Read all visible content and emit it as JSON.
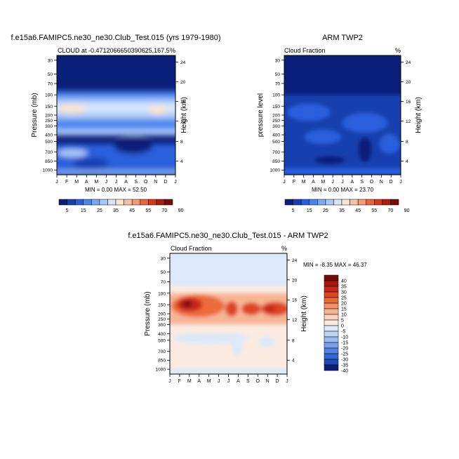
{
  "chart_data": [
    {
      "type": "heatmap",
      "title": "f.e15a6.FAMIPC5.ne30_ne30.Club_Test.015 (yrs 1979-1980)",
      "subtitle_left": "CLOUD at -0.4712066650390625,167.5",
      "subtitle_right": "%",
      "ylabel": "Pressure (mb)",
      "ylabel_right": "Height (km)",
      "x_ticks": [
        "J",
        "F",
        "M",
        "A",
        "M",
        "J",
        "J",
        "A",
        "S",
        "O",
        "N",
        "D",
        "J"
      ],
      "y_ticks": [
        "30",
        "50",
        "70",
        "100",
        "150",
        "200",
        "250",
        "300",
        "400",
        "500",
        "700",
        "850",
        "1000"
      ],
      "y_ticks_right": [
        "24",
        "20",
        "16",
        "12",
        "8",
        "4"
      ],
      "stats": "MIN =   0.00 MAX =  52.50",
      "colorbar_labels": [
        "5",
        "15",
        "25",
        "35",
        "45",
        "55",
        "70",
        "90"
      ]
    },
    {
      "type": "heatmap",
      "title": "ARM TWP2",
      "subtitle_left": "Cloud Fraction",
      "subtitle_right": "%",
      "ylabel": "pressure level",
      "ylabel_right": "Height (km)",
      "x_ticks": [
        "J",
        "F",
        "M",
        "A",
        "M",
        "J",
        "J",
        "A",
        "S",
        "O",
        "N",
        "D",
        "J"
      ],
      "y_ticks": [
        "30",
        "50",
        "70",
        "100",
        "150",
        "200",
        "250",
        "300",
        "400",
        "500",
        "700",
        "850",
        "1000"
      ],
      "y_ticks_right": [
        "24",
        "20",
        "16",
        "12",
        "8",
        "4"
      ],
      "stats": "MIN =   0.00 MAX =  23.70",
      "colorbar_labels": [
        "5",
        "15",
        "25",
        "35",
        "45",
        "55",
        "70",
        "90"
      ]
    },
    {
      "type": "heatmap",
      "title": "f.e15a6.FAMIPC5.ne30_ne30.Club_Test.015 - ARM TWP2",
      "subtitle_left": "Cloud Fraction",
      "subtitle_right": "%",
      "ylabel": "Pressure (mb)",
      "ylabel_right": "Height (km)",
      "x_ticks": [
        "J",
        "F",
        "M",
        "A",
        "M",
        "J",
        "J",
        "A",
        "S",
        "O",
        "N",
        "D",
        "J"
      ],
      "y_ticks": [
        "30",
        "50",
        "70",
        "100",
        "150",
        "200",
        "250",
        "300",
        "400",
        "500",
        "700",
        "850",
        "1000"
      ],
      "y_ticks_right": [
        "24",
        "20",
        "16",
        "12",
        "8",
        "4"
      ],
      "stats": "MIN =  -8.35 MAX =  46.37",
      "colorbar_labels": [
        "40",
        "35",
        "30",
        "25",
        "20",
        "15",
        "10",
        "5",
        "0",
        "-5",
        "-10",
        "-15",
        "-20",
        "-25",
        "-30",
        "-35",
        "-40"
      ]
    }
  ],
  "palettes": {
    "sequential": [
      "#0a1f7a",
      "#173fb0",
      "#2a5fdc",
      "#4a86ee",
      "#7aa9f4",
      "#a7c7f8",
      "#d4e6fb",
      "#fbe3cf",
      "#f8c2a2",
      "#f39a72",
      "#e8643d",
      "#d03a1f",
      "#ab1c12",
      "#7a0a0a"
    ],
    "diverging": [
      "#7a0a0a",
      "#a8150f",
      "#c8271a",
      "#de4424",
      "#ec6a3a",
      "#f39168",
      "#f7b596",
      "#fad3be",
      "#fbeadf",
      "#dbe9fa",
      "#bcd4f5",
      "#99bbf1",
      "#769fea",
      "#5482e1",
      "#3566d1",
      "#1e48b4",
      "#0a1f7a"
    ]
  }
}
